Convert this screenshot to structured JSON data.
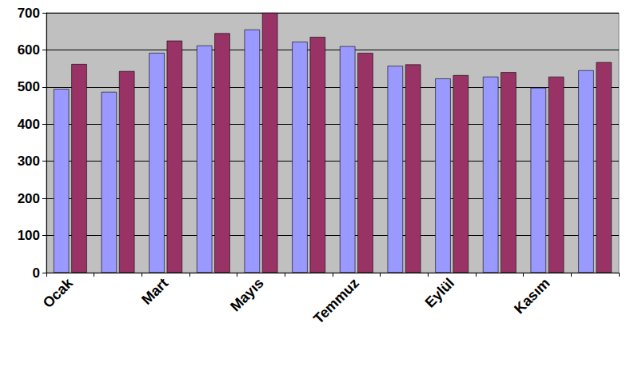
{
  "chart_data": {
    "type": "bar",
    "categories": [
      "Ocak",
      null,
      "Mart",
      null,
      "Mayıs",
      null,
      "Temmuz",
      null,
      "Eylül",
      null,
      "Kasım",
      null
    ],
    "series": [
      {
        "color": "#9999ff",
        "values": [
          495,
          487,
          592,
          612,
          655,
          622,
          610,
          557,
          523,
          528,
          498,
          545
        ]
      },
      {
        "color": "#993366",
        "values": [
          562,
          543,
          625,
          645,
          700,
          635,
          592,
          561,
          532,
          540,
          528,
          567
        ]
      }
    ],
    "ylim": [
      0,
      700
    ],
    "yticks": [
      0,
      100,
      200,
      300,
      400,
      500,
      600,
      700
    ],
    "grid": true
  }
}
